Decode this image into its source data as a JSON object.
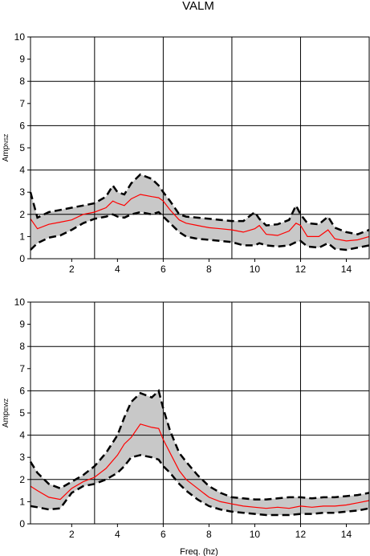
{
  "title": "VALM",
  "xlabel": "Freq. (hz)",
  "colors": {
    "mean": "#ff0000",
    "band": "#c8c8c8",
    "bound": "#000000",
    "grid": "#000000"
  },
  "chart_data": [
    {
      "type": "line",
      "ylabel_main": "Amp",
      "ylabel_sub": "NSZ",
      "xlim": [
        0.2,
        15
      ],
      "ylim": [
        0,
        10
      ],
      "xticks": [
        2,
        4,
        6,
        8,
        10,
        12,
        14
      ],
      "yticks": [
        0,
        1,
        2,
        3,
        4,
        5,
        6,
        7,
        8,
        9,
        10
      ],
      "xgrid": [
        3,
        6,
        9,
        12
      ],
      "ygrid": [
        2,
        4,
        6,
        8
      ],
      "x": [
        0.2,
        0.5,
        1,
        1.5,
        2,
        2.5,
        3,
        3.5,
        3.8,
        4,
        4.3,
        4.6,
        5,
        5.5,
        5.8,
        6,
        6.3,
        6.7,
        7,
        7.5,
        8,
        8.5,
        9,
        9.5,
        10,
        10.2,
        10.5,
        11,
        11.5,
        11.8,
        12,
        12.3,
        12.8,
        13.2,
        13.5,
        14,
        14.5,
        15
      ],
      "mean": [
        1.8,
        1.35,
        1.55,
        1.65,
        1.75,
        2.0,
        2.1,
        2.3,
        2.6,
        2.5,
        2.4,
        2.7,
        2.9,
        2.8,
        2.75,
        2.6,
        2.2,
        1.75,
        1.6,
        1.5,
        1.4,
        1.35,
        1.3,
        1.2,
        1.35,
        1.5,
        1.1,
        1.05,
        1.25,
        1.6,
        1.5,
        1.0,
        1.0,
        1.3,
        0.9,
        0.8,
        0.85,
        1.0
      ],
      "upper": [
        3.0,
        1.85,
        2.1,
        2.2,
        2.3,
        2.4,
        2.5,
        2.8,
        3.3,
        3.0,
        2.9,
        3.4,
        3.8,
        3.6,
        3.3,
        3.0,
        2.6,
        2.0,
        1.9,
        1.85,
        1.8,
        1.75,
        1.7,
        1.7,
        2.1,
        1.8,
        1.5,
        1.55,
        1.75,
        2.4,
        2.0,
        1.6,
        1.55,
        1.9,
        1.4,
        1.2,
        1.1,
        1.3
      ],
      "lower": [
        0.4,
        0.7,
        0.95,
        1.05,
        1.3,
        1.6,
        1.8,
        1.9,
        2.0,
        1.9,
        1.85,
        2.0,
        2.1,
        2.0,
        2.1,
        1.9,
        1.6,
        1.2,
        1.0,
        0.9,
        0.85,
        0.8,
        0.75,
        0.6,
        0.6,
        0.7,
        0.6,
        0.55,
        0.6,
        0.75,
        0.8,
        0.55,
        0.5,
        0.7,
        0.45,
        0.4,
        0.5,
        0.6
      ]
    },
    {
      "type": "line",
      "ylabel_main": "Amp",
      "ylabel_sub": "EWZ",
      "xlim": [
        0.2,
        15
      ],
      "ylim": [
        0,
        10
      ],
      "xticks": [
        2,
        4,
        6,
        8,
        10,
        12,
        14
      ],
      "yticks": [
        0,
        1,
        2,
        3,
        4,
        5,
        6,
        7,
        8,
        9,
        10
      ],
      "xgrid": [
        3,
        6,
        9,
        12
      ],
      "ygrid": [
        2,
        4,
        6,
        8
      ],
      "x": [
        0.2,
        0.5,
        1,
        1.5,
        2,
        2.5,
        3,
        3.5,
        4,
        4.3,
        4.6,
        5,
        5.5,
        5.8,
        6,
        6.3,
        6.7,
        7,
        7.5,
        8,
        8.5,
        9,
        9.5,
        10,
        10.5,
        11,
        11.5,
        12,
        12.5,
        13,
        13.5,
        14,
        14.5,
        15
      ],
      "mean": [
        1.7,
        1.5,
        1.2,
        1.1,
        1.6,
        1.9,
        2.1,
        2.5,
        3.1,
        3.6,
        3.9,
        4.5,
        4.35,
        4.3,
        3.8,
        3.2,
        2.4,
        2.0,
        1.6,
        1.2,
        1.0,
        0.9,
        0.8,
        0.75,
        0.7,
        0.75,
        0.7,
        0.8,
        0.75,
        0.8,
        0.8,
        0.85,
        0.95,
        1.05
      ],
      "upper": [
        2.8,
        2.3,
        1.8,
        1.6,
        1.9,
        2.2,
        2.6,
        3.2,
        4.0,
        4.8,
        5.5,
        5.9,
        5.7,
        6.0,
        5.2,
        4.2,
        3.2,
        2.8,
        2.2,
        1.7,
        1.4,
        1.2,
        1.15,
        1.1,
        1.1,
        1.15,
        1.2,
        1.2,
        1.15,
        1.2,
        1.2,
        1.25,
        1.3,
        1.4
      ],
      "lower": [
        0.8,
        0.75,
        0.65,
        0.7,
        1.4,
        1.7,
        1.8,
        2.0,
        2.3,
        2.6,
        3.0,
        3.1,
        3.0,
        2.9,
        2.6,
        2.3,
        1.8,
        1.5,
        1.1,
        0.8,
        0.65,
        0.55,
        0.5,
        0.45,
        0.4,
        0.4,
        0.4,
        0.45,
        0.45,
        0.5,
        0.5,
        0.55,
        0.6,
        0.7
      ]
    }
  ]
}
